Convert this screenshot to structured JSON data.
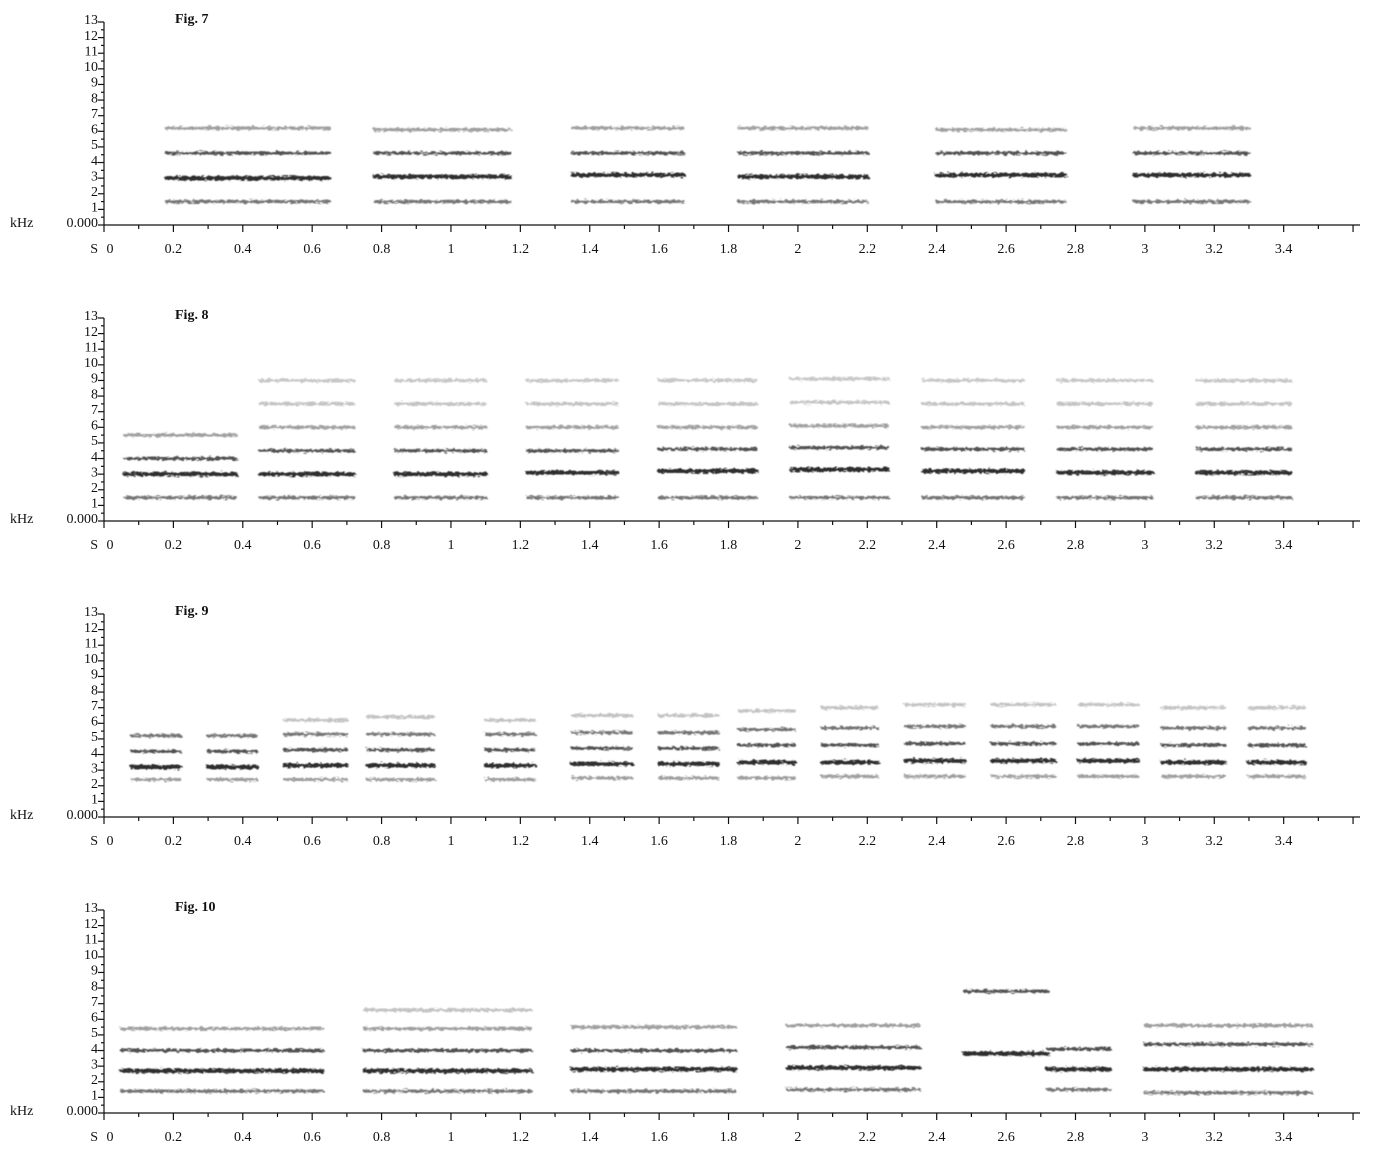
{
  "chart_data": [
    {
      "type": "spectrogram",
      "title": "Fig. 7",
      "xlabel": "S",
      "ylabel": "kHz",
      "xlim": [
        0,
        3.62
      ],
      "ylim": [
        0,
        13
      ],
      "xticks": [
        0,
        0.2,
        0.4,
        0.6,
        0.8,
        1,
        1.2,
        1.4,
        1.6,
        1.8,
        2,
        2.2,
        2.4,
        2.6,
        2.8,
        3,
        3.2,
        3.4
      ],
      "yticks": [
        {
          "value": 0,
          "label": "0.000"
        },
        1,
        2,
        3,
        4,
        5,
        6,
        7,
        8,
        9,
        10,
        11,
        12,
        13
      ],
      "notes": [
        {
          "start": 0.18,
          "end": 0.65,
          "harmonics": [
            3.0,
            4.6,
            1.5,
            6.2
          ]
        },
        {
          "start": 0.78,
          "end": 1.17,
          "harmonics": [
            3.1,
            4.6,
            1.5,
            6.1
          ]
        },
        {
          "start": 1.35,
          "end": 1.67,
          "harmonics": [
            3.2,
            4.6,
            1.5,
            6.2
          ]
        },
        {
          "start": 1.83,
          "end": 2.2,
          "harmonics": [
            3.1,
            4.6,
            1.5,
            6.2
          ]
        },
        {
          "start": 2.4,
          "end": 2.77,
          "harmonics": [
            3.2,
            4.6,
            1.5,
            6.1
          ]
        },
        {
          "start": 2.97,
          "end": 3.3,
          "harmonics": [
            3.2,
            4.6,
            1.5,
            6.2
          ]
        }
      ]
    },
    {
      "type": "spectrogram",
      "title": "Fig. 8",
      "xlabel": "S",
      "ylabel": "kHz",
      "xlim": [
        0,
        3.62
      ],
      "ylim": [
        0,
        13
      ],
      "xticks": [
        0,
        0.2,
        0.4,
        0.6,
        0.8,
        1,
        1.2,
        1.4,
        1.6,
        1.8,
        2,
        2.2,
        2.4,
        2.6,
        2.8,
        3,
        3.2,
        3.4
      ],
      "yticks": [
        {
          "value": 0,
          "label": "0.000"
        },
        1,
        2,
        3,
        4,
        5,
        6,
        7,
        8,
        9,
        10,
        11,
        12,
        13
      ],
      "notes": [
        {
          "start": 0.06,
          "end": 0.38,
          "harmonics": [
            3.0,
            4.0,
            1.5,
            5.5
          ]
        },
        {
          "start": 0.45,
          "end": 0.72,
          "harmonics": [
            3.0,
            4.5,
            1.5,
            6.0,
            7.5,
            9.0
          ]
        },
        {
          "start": 0.84,
          "end": 1.1,
          "harmonics": [
            3.0,
            4.5,
            1.5,
            6.0,
            7.5,
            9.0
          ]
        },
        {
          "start": 1.22,
          "end": 1.48,
          "harmonics": [
            3.1,
            4.5,
            1.5,
            6.0,
            7.5,
            9.0
          ]
        },
        {
          "start": 1.6,
          "end": 1.88,
          "harmonics": [
            3.2,
            4.6,
            1.5,
            6.0,
            7.5,
            9.0
          ]
        },
        {
          "start": 1.98,
          "end": 2.26,
          "harmonics": [
            3.3,
            4.7,
            1.5,
            6.1,
            7.6,
            9.1
          ]
        },
        {
          "start": 2.36,
          "end": 2.65,
          "harmonics": [
            3.2,
            4.6,
            1.5,
            6.0,
            7.5,
            9.0
          ]
        },
        {
          "start": 2.75,
          "end": 3.02,
          "harmonics": [
            3.1,
            4.6,
            1.5,
            6.0,
            7.5,
            9.0
          ]
        },
        {
          "start": 3.15,
          "end": 3.42,
          "harmonics": [
            3.1,
            4.6,
            1.5,
            6.0,
            7.5,
            9.0
          ]
        }
      ]
    },
    {
      "type": "spectrogram",
      "title": "Fig. 9",
      "xlabel": "S",
      "ylabel": "kHz",
      "xlim": [
        0,
        3.62
      ],
      "ylim": [
        0,
        13
      ],
      "xticks": [
        0,
        0.2,
        0.4,
        0.6,
        0.8,
        1,
        1.2,
        1.4,
        1.6,
        1.8,
        2,
        2.2,
        2.4,
        2.6,
        2.8,
        3,
        3.2,
        3.4
      ],
      "yticks": [
        {
          "value": 0,
          "label": "0.000"
        },
        1,
        2,
        3,
        4,
        5,
        6,
        7,
        8,
        9,
        10,
        11,
        12,
        13
      ],
      "notes": [
        {
          "start": 0.08,
          "end": 0.22,
          "harmonics": [
            3.2,
            4.2,
            5.2,
            2.4
          ]
        },
        {
          "start": 0.3,
          "end": 0.44,
          "harmonics": [
            3.2,
            4.2,
            5.2,
            2.4
          ]
        },
        {
          "start": 0.52,
          "end": 0.7,
          "harmonics": [
            3.3,
            4.3,
            5.3,
            2.4,
            6.2
          ]
        },
        {
          "start": 0.76,
          "end": 0.95,
          "harmonics": [
            3.3,
            4.3,
            5.3,
            2.4,
            6.4
          ]
        },
        {
          "start": 1.1,
          "end": 1.24,
          "harmonics": [
            3.3,
            4.3,
            5.3,
            2.4,
            6.2
          ]
        },
        {
          "start": 1.35,
          "end": 1.52,
          "harmonics": [
            3.4,
            4.4,
            5.4,
            2.5,
            6.5
          ]
        },
        {
          "start": 1.6,
          "end": 1.77,
          "harmonics": [
            3.4,
            4.4,
            5.4,
            2.5,
            6.5
          ]
        },
        {
          "start": 1.83,
          "end": 1.99,
          "harmonics": [
            3.5,
            4.6,
            5.6,
            2.5,
            6.8
          ]
        },
        {
          "start": 2.07,
          "end": 2.23,
          "harmonics": [
            3.5,
            4.6,
            5.7,
            2.6,
            7.0
          ]
        },
        {
          "start": 2.31,
          "end": 2.48,
          "harmonics": [
            3.6,
            4.7,
            5.8,
            2.6,
            7.2
          ]
        },
        {
          "start": 2.56,
          "end": 2.74,
          "harmonics": [
            3.6,
            4.7,
            5.8,
            2.6,
            7.2
          ]
        },
        {
          "start": 2.81,
          "end": 2.98,
          "harmonics": [
            3.6,
            4.7,
            5.8,
            2.6,
            7.2
          ]
        },
        {
          "start": 3.05,
          "end": 3.23,
          "harmonics": [
            3.5,
            4.6,
            5.7,
            2.6,
            7.0
          ]
        },
        {
          "start": 3.3,
          "end": 3.46,
          "harmonics": [
            3.5,
            4.6,
            5.7,
            2.6,
            7.0
          ]
        }
      ]
    },
    {
      "type": "spectrogram",
      "title": "Fig. 10",
      "xlabel": "S",
      "ylabel": "kHz",
      "xlim": [
        0,
        3.62
      ],
      "ylim": [
        0,
        13
      ],
      "xticks": [
        0,
        0.2,
        0.4,
        0.6,
        0.8,
        1,
        1.2,
        1.4,
        1.6,
        1.8,
        2,
        2.2,
        2.4,
        2.6,
        2.8,
        3,
        3.2,
        3.4
      ],
      "yticks": [
        {
          "value": 0,
          "label": "0.000"
        },
        1,
        2,
        3,
        4,
        5,
        6,
        7,
        8,
        9,
        10,
        11,
        12,
        13
      ],
      "notes": [
        {
          "start": 0.05,
          "end": 0.63,
          "harmonics": [
            2.7,
            4.0,
            1.4,
            5.4
          ]
        },
        {
          "start": 0.75,
          "end": 1.23,
          "harmonics": [
            2.7,
            4.0,
            1.4,
            5.4,
            6.6
          ]
        },
        {
          "start": 1.35,
          "end": 1.82,
          "harmonics": [
            2.8,
            4.0,
            1.4,
            5.5
          ]
        },
        {
          "start": 1.97,
          "end": 2.35,
          "harmonics": [
            2.9,
            4.2,
            1.5,
            5.6
          ]
        },
        {
          "start": 2.48,
          "end": 2.72,
          "harmonics": [
            3.8,
            7.8
          ]
        },
        {
          "start": 2.72,
          "end": 2.9,
          "harmonics": [
            2.8,
            4.1,
            1.5
          ]
        },
        {
          "start": 3.0,
          "end": 3.48,
          "harmonics": [
            2.8,
            4.4,
            1.3,
            5.6
          ]
        }
      ]
    }
  ]
}
